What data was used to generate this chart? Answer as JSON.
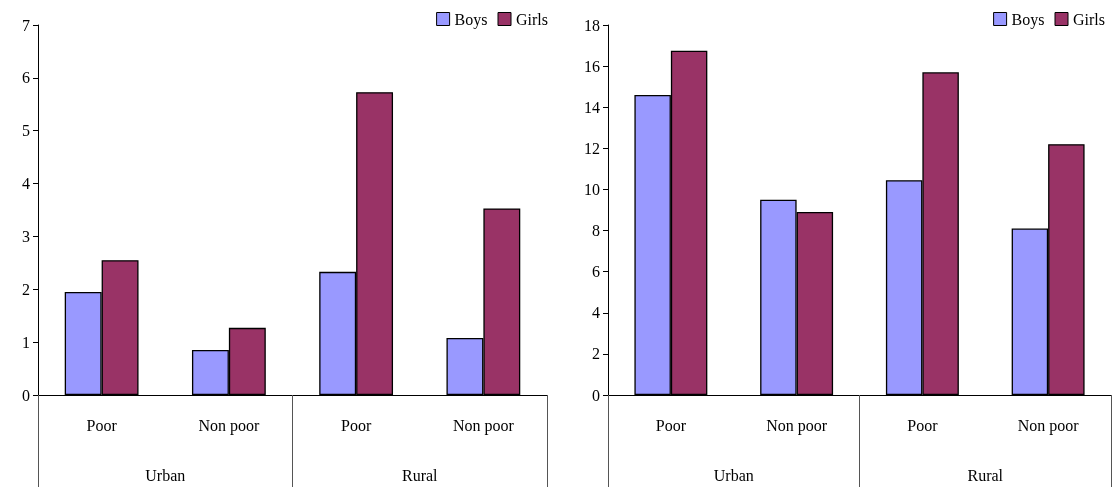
{
  "chart_data": [
    {
      "type": "bar",
      "categories": [
        "Poor",
        "Non poor",
        "Poor",
        "Non poor"
      ],
      "annotations": [
        "Urban",
        "Rural"
      ],
      "series": [
        {
          "name": "Boys",
          "color": "#9999ff",
          "values": [
            1.95,
            0.85,
            2.33,
            1.08
          ]
        },
        {
          "name": "Girls",
          "color": "#993366",
          "values": [
            2.55,
            1.27,
            5.73,
            3.53
          ]
        }
      ],
      "ylim": [
        0,
        7
      ],
      "yticks": [
        0,
        1,
        2,
        3,
        4,
        5,
        6,
        7
      ],
      "grid": false,
      "legend": "top right"
    },
    {
      "type": "bar",
      "categories": [
        "Poor",
        "Non poor",
        "Poor",
        "Non poor"
      ],
      "annotations": [
        "Urban",
        "Rural"
      ],
      "series": [
        {
          "name": "Boys",
          "color": "#9999ff",
          "values": [
            14.6,
            9.5,
            10.45,
            8.1
          ]
        },
        {
          "name": "Girls",
          "color": "#993366",
          "values": [
            16.75,
            8.9,
            15.7,
            12.2
          ]
        }
      ],
      "ylim": [
        0,
        18
      ],
      "yticks": [
        0,
        2,
        4,
        6,
        8,
        10,
        12,
        14,
        16,
        18
      ],
      "grid": false,
      "legend": "top right"
    }
  ]
}
